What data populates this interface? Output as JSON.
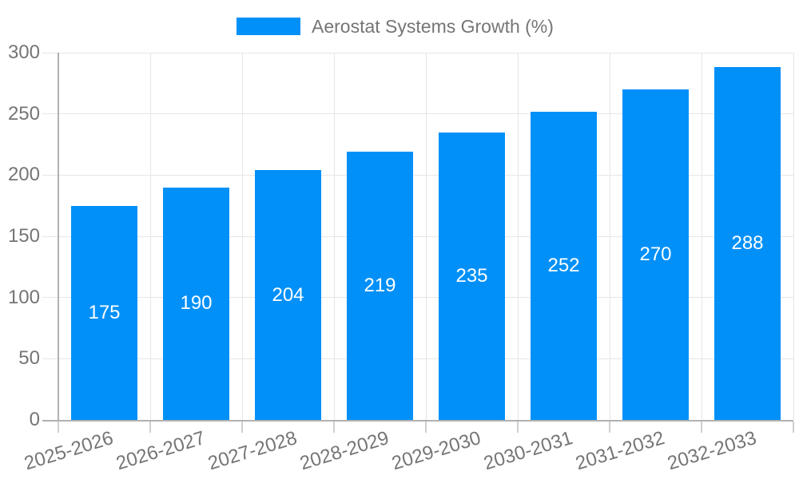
{
  "chart_data": {
    "type": "bar",
    "title": "Aerostat Systems Growth (%)",
    "legend": {
      "label": "Aerostat Systems Growth (%)",
      "position": "top-center",
      "swatch_shape": "rect"
    },
    "categories": [
      "2025-2026",
      "2026-2027",
      "2027-2028",
      "2028-2029",
      "2029-2030",
      "2030-2031",
      "2031-2032",
      "2032-2033"
    ],
    "series": [
      {
        "name": "Aerostat Systems Growth (%)",
        "values": [
          175,
          190,
          204,
          219,
          235,
          252,
          270,
          288
        ]
      }
    ],
    "xlabel": "",
    "ylabel": "",
    "ylim": [
      0,
      300
    ],
    "yticks": [
      0,
      50,
      100,
      150,
      200,
      250,
      300
    ],
    "grid": true,
    "bar_value_labels_visible": true,
    "x_label_rotation_deg": -17,
    "colors": {
      "bar": "#0190f8",
      "axis_text": "#757575",
      "bar_label": "#ffffff",
      "gridline": "#e6e6e6",
      "axis_line": "#b1b1b1",
      "tick": "#cfcfcf",
      "background": "#ffffff"
    }
  }
}
